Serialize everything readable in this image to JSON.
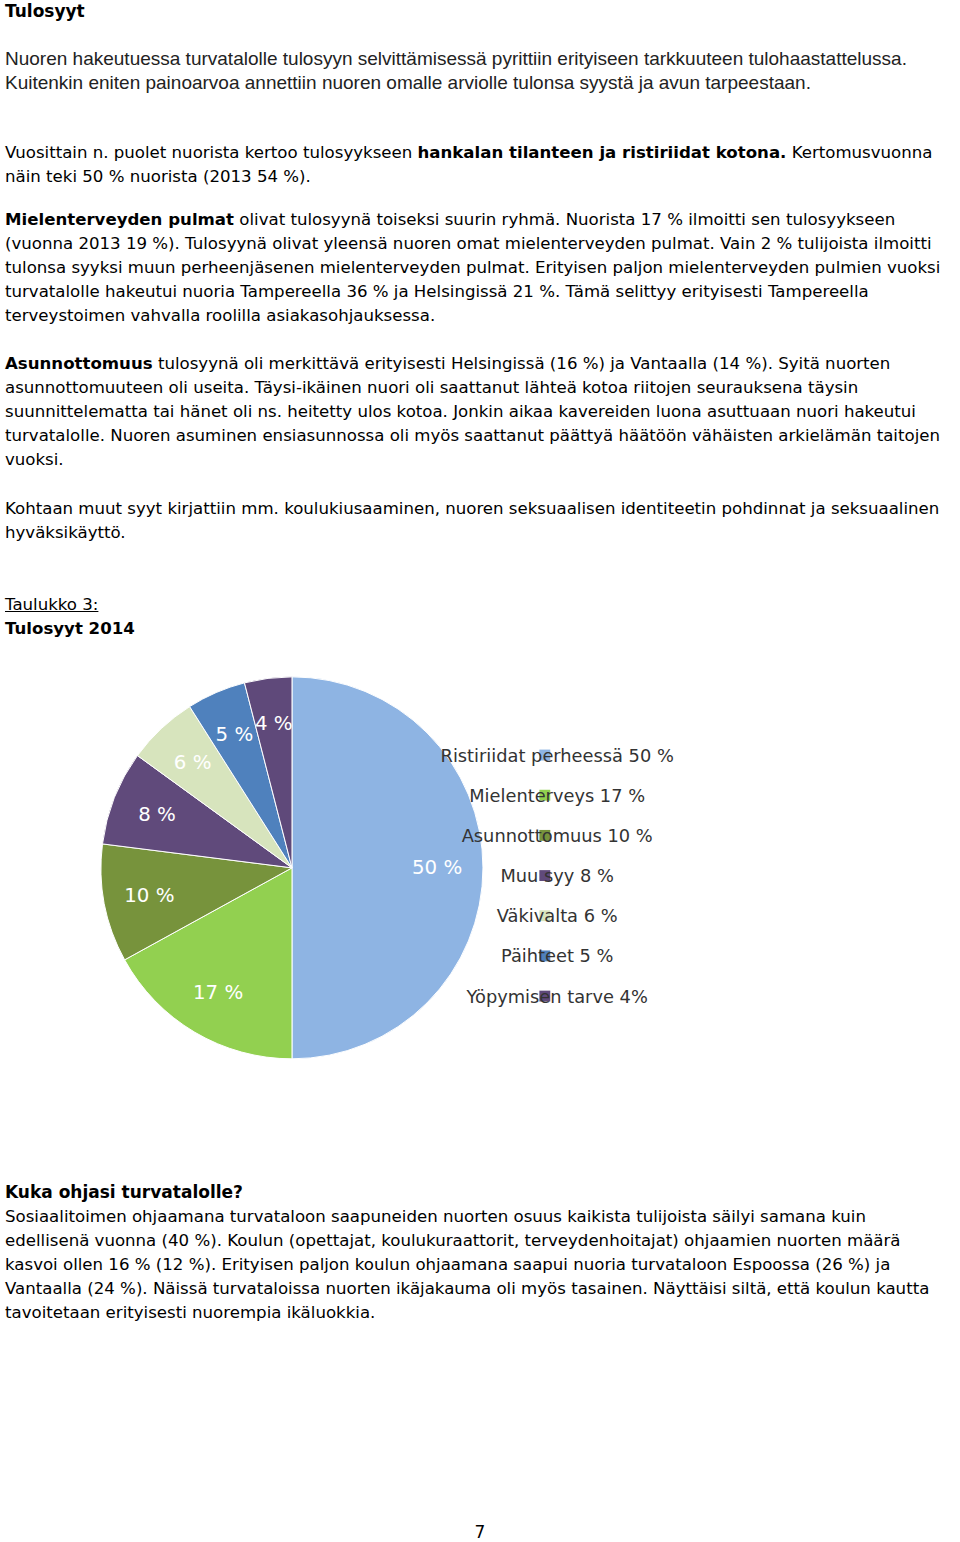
{
  "heading": "Tulosyyt",
  "intro": [
    {
      "text": "Nuoren hakeutuessa turvatalolle tulosyyn selvittämisessä pyrittiin erityiseen tarkkuuteen tulohaastattelussa. Kuitenkin eniten painoarvoa annettiin nuoren omalle arviolle tulonsa syystä ja avun tarpeestaan."
    }
  ],
  "paragraphs": [
    [
      {
        "text": "Vuosittain n. puolet nuorista kertoo tulosyykseen "
      },
      {
        "text": "hankalan tilanteen ja ristiriidat kotona.",
        "bold": true
      },
      {
        "text": " Kertomusvuonna näin teki 50 % nuorista (2013 54 %)."
      }
    ],
    [
      {
        "text": "Mielenterveyden pulmat",
        "bold": true
      },
      {
        "text": " olivat tulosyynä toiseksi suurin ryhmä. Nuorista 17 % ilmoitti sen tulosyykseen (vuonna 2013 19 %). Tulosyynä olivat yleensä nuoren omat mielenterveyden pulmat. Vain 2 % tulijoista ilmoitti tulonsa syyksi muun perheenjäsenen mielenterveyden pulmat. Erityisen paljon mielenterveyden pulmien vuoksi turvatalolle hakeutui nuoria Tampereella 36 % ja Helsingissä 21 %. Tämä selittyy erityisesti Tampereella terveystoimen vahvalla roolilla asiakasohjauksessa."
      }
    ],
    [
      {
        "text": "Asunnottomuus",
        "bold": true
      },
      {
        "text": " tulosyynä oli merkittävä erityisesti Helsingissä (16 %) ja Vantaalla (14 %). Syitä nuorten asunnottomuuteen oli useita. Täysi-ikäinen nuori oli saattanut lähteä kotoa riitojen seurauksena täysin suunnittelematta tai hänet oli ns. heitetty ulos kotoa. Jonkin aikaa kavereiden luona asuttuaan nuori hakeutui turvatalolle. Nuoren asuminen ensiasunnossa oli myös saattanut päättyä häätöön vähäisten arkielämän taitojen vuoksi."
      }
    ],
    [
      {
        "text": "Kohtaan muut syyt kirjattiin mm. koulukiusaaminen, nuoren seksuaalisen identiteetin pohdinnat ja seksuaalinen hyväksikäyttö."
      }
    ]
  ],
  "caption_label": "Taulukko 3:",
  "caption_title": "Tulosyyt 2014",
  "chart_data": {
    "type": "pie",
    "categories": [
      "Ristiriidat perheessä 50 %",
      "Mielenterveys 17 %",
      "Asunnottomuus 10 %",
      "Muu syy 8 %",
      "Väkivalta 6 %",
      "Päihteet 5 %",
      "Yöpymisen tarve 4%"
    ],
    "values": [
      50,
      17,
      10,
      8,
      6,
      5,
      4
    ],
    "value_labels": [
      "50 %",
      "17 %",
      "10 %",
      "8 %",
      "6 %",
      "5 %",
      "4 %"
    ],
    "colors": [
      "#8EB4E3",
      "#92D050",
      "#77933C",
      "#604A7B",
      "#D7E4BD",
      "#4F81BD",
      "#5F497A"
    ],
    "data_labels": true,
    "legend": "right"
  },
  "section2_heading": "Kuka ohjasi turvatalolle?",
  "section2_paragraph": [
    {
      "text": "Sosiaalitoimen ohjaamana turvataloon saapuneiden nuorten osuus kaikista tulijoista säilyi samana kuin edellisenä vuonna (40 %). Koulun (opettajat, koulukuraattorit, terveydenhoitajat) ohjaamien nuorten määrä kasvoi ollen 16 % (12 %). Erityisen paljon koulun ohjaamana saapui nuoria turvataloon Espoossa (26 %) ja Vantaalla (24 %). Näissä turvataloissa nuorten ikäjakauma oli myös tasainen. Näyttäisi siltä, että koulun kautta tavoitetaan erityisesti nuorempia ikäluokkia."
    }
  ],
  "page_number": "7"
}
